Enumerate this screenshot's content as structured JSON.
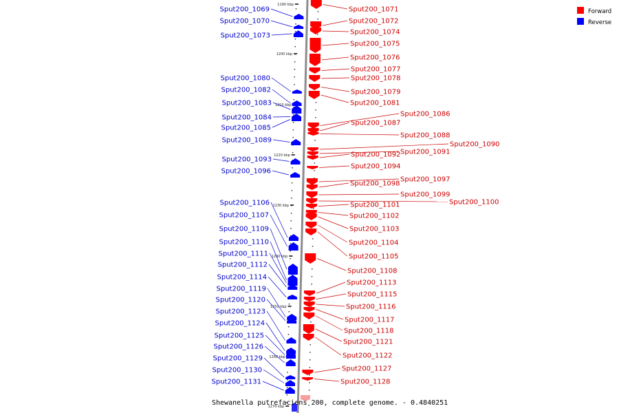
{
  "caption": "Shewanella putrefaciens 200, complete genome. - 0.4840251",
  "legend": [
    {
      "label": "Forward",
      "color": "#ff0000"
    },
    {
      "label": "Reverse",
      "color": "#0000ff"
    }
  ],
  "colors": {
    "forward": "#ff0000",
    "reverse": "#0000ff",
    "forward_text": "#cc0000",
    "reverse_text": "#0000cc"
  },
  "ticks": [
    "1190 kbp",
    "1200 kbp",
    "1210 kbp",
    "1220 kbp",
    "1230 kbp",
    "1240 kbp",
    "1250 kbp",
    "1260 kbp",
    "1270 kbp"
  ],
  "forward_genes": [
    {
      "label": "Sput200_1071"
    },
    {
      "label": "Sput200_1072"
    },
    {
      "label": "Sput200_1074"
    },
    {
      "label": "Sput200_1075"
    },
    {
      "label": "Sput200_1076"
    },
    {
      "label": "Sput200_1077"
    },
    {
      "label": "Sput200_1078"
    },
    {
      "label": "Sput200_1079"
    },
    {
      "label": "Sput200_1081"
    },
    {
      "label": "Sput200_1086"
    },
    {
      "label": "Sput200_1087"
    },
    {
      "label": "Sput200_1088"
    },
    {
      "label": "Sput200_1090"
    },
    {
      "label": "Sput200_1091"
    },
    {
      "label": "Sput200_1092"
    },
    {
      "label": "Sput200_1094"
    },
    {
      "label": "Sput200_1097"
    },
    {
      "label": "Sput200_1098"
    },
    {
      "label": "Sput200_1099"
    },
    {
      "label": "Sput200_1100"
    },
    {
      "label": "Sput200_1101"
    },
    {
      "label": "Sput200_1102"
    },
    {
      "label": "Sput200_1103"
    },
    {
      "label": "Sput200_1104"
    },
    {
      "label": "Sput200_1105"
    },
    {
      "label": "Sput200_1108"
    },
    {
      "label": "Sput200_1113"
    },
    {
      "label": "Sput200_1115"
    },
    {
      "label": "Sput200_1116"
    },
    {
      "label": "Sput200_1117"
    },
    {
      "label": "Sput200_1118"
    },
    {
      "label": "Sput200_1121"
    },
    {
      "label": "Sput200_1122"
    },
    {
      "label": "Sput200_1127"
    },
    {
      "label": "Sput200_1128"
    }
  ],
  "reverse_genes": [
    {
      "label": "Sput200_1069"
    },
    {
      "label": "Sput200_1070"
    },
    {
      "label": "Sput200_1073"
    },
    {
      "label": "Sput200_1080"
    },
    {
      "label": "Sput200_1082"
    },
    {
      "label": "Sput200_1083"
    },
    {
      "label": "Sput200_1084"
    },
    {
      "label": "Sput200_1085"
    },
    {
      "label": "Sput200_1089"
    },
    {
      "label": "Sput200_1093"
    },
    {
      "label": "Sput200_1096"
    },
    {
      "label": "Sput200_1106"
    },
    {
      "label": "Sput200_1107"
    },
    {
      "label": "Sput200_1109"
    },
    {
      "label": "Sput200_1110"
    },
    {
      "label": "Sput200_1111"
    },
    {
      "label": "Sput200_1112"
    },
    {
      "label": "Sput200_1114"
    },
    {
      "label": "Sput200_1119"
    },
    {
      "label": "Sput200_1120"
    },
    {
      "label": "Sput200_1123"
    },
    {
      "label": "Sput200_1124"
    },
    {
      "label": "Sput200_1125"
    },
    {
      "label": "Sput200_1126"
    },
    {
      "label": "Sput200_1129"
    },
    {
      "label": "Sput200_1130"
    },
    {
      "label": "Sput200_1131"
    }
  ]
}
